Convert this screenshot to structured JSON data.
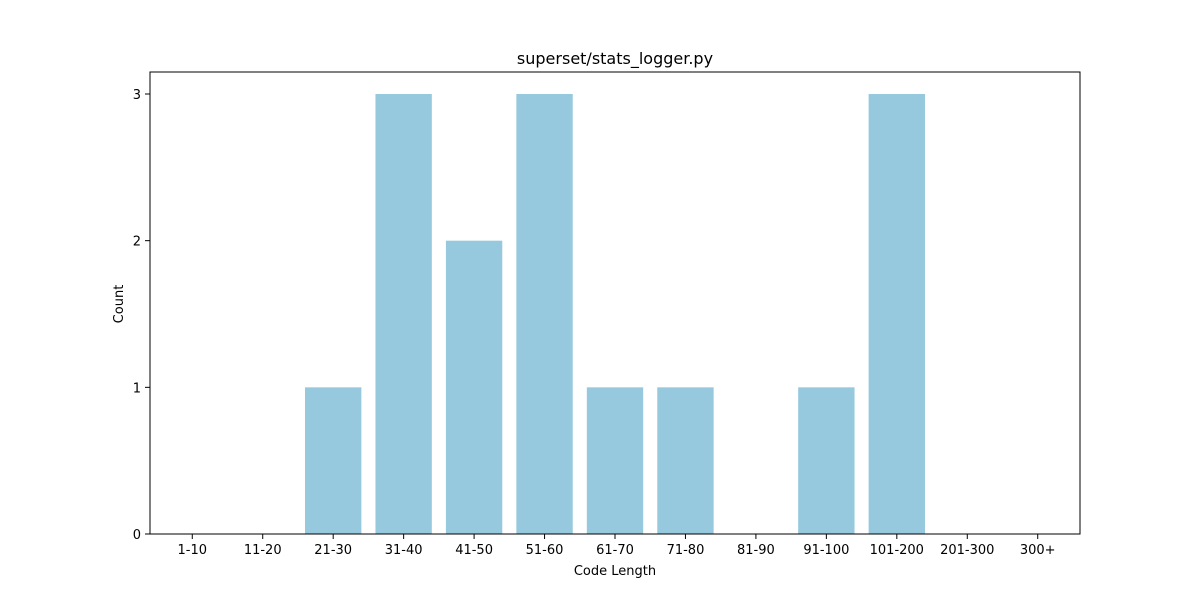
{
  "chart_data": {
    "type": "bar",
    "title": "superset/stats_logger.py",
    "xlabel": "Code Length",
    "ylabel": "Count",
    "categories": [
      "1-10",
      "11-20",
      "21-30",
      "31-40",
      "41-50",
      "51-60",
      "61-70",
      "71-80",
      "81-90",
      "91-100",
      "101-200",
      "201-300",
      "300+"
    ],
    "values": [
      0,
      0,
      1,
      3,
      2,
      3,
      1,
      1,
      0,
      1,
      3,
      0,
      0
    ],
    "ylim": [
      0,
      3.15
    ],
    "yticks": [
      0,
      1,
      2,
      3
    ],
    "bar_color": "#96c9de",
    "grid": false,
    "legend": "none"
  }
}
